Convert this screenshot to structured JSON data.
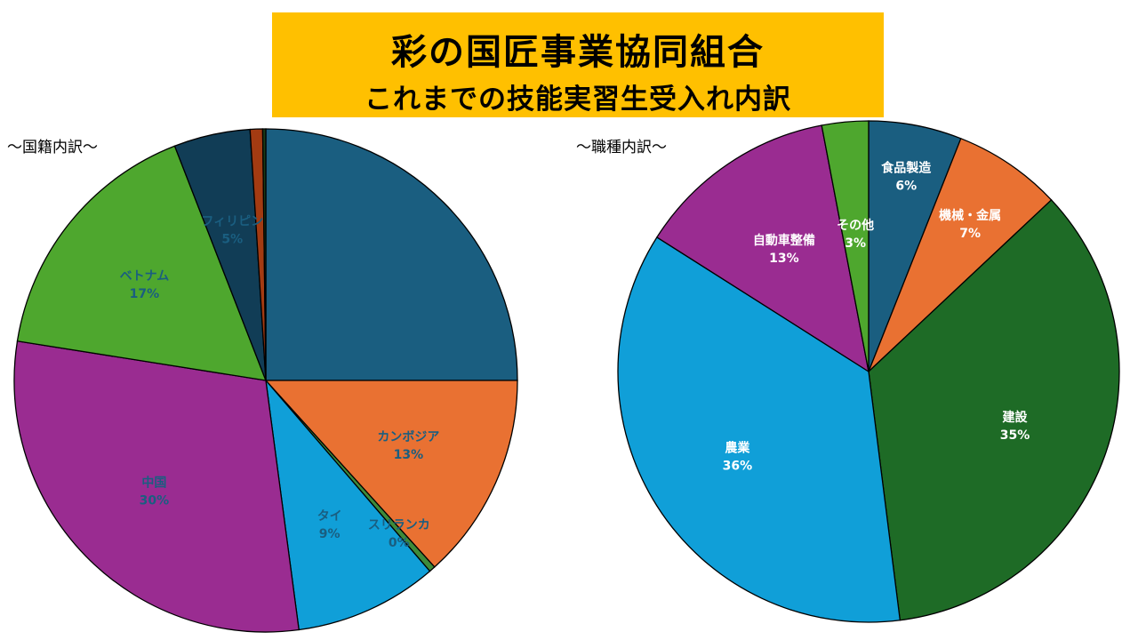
{
  "title": {
    "line1": "彩の国匠事業協同組合",
    "line2": "これまでの技能実習生受入れ内訳"
  },
  "subheads": {
    "left": "～国籍内訳～",
    "right": "～職種内訳～"
  },
  "chart_data": [
    {
      "type": "pie",
      "title": "～国籍内訳～",
      "start_angle_deg": 0,
      "direction": "clockwise",
      "slices": [
        {
          "name": "",
          "value": 25.0,
          "color": "#1a5e80",
          "label_color": "#1a5e80",
          "show_label": false
        },
        {
          "name": "カンボジア",
          "value": 13.3,
          "label": "13%",
          "color": "#e97132",
          "label_color": "#1a5e80",
          "show_label": true
        },
        {
          "name": "スリランカ",
          "value": 0.4,
          "label": "0%",
          "color": "#3e8a3a",
          "label_color": "#1a5e80",
          "show_label": true
        },
        {
          "name": "タイ",
          "value": 9.2,
          "label": "9%",
          "color": "#109fd8",
          "label_color": "#1a5e80",
          "show_label": true
        },
        {
          "name": "中国",
          "value": 29.6,
          "label": "30%",
          "color": "#9a2c91",
          "label_color": "#1a5e80",
          "show_label": true
        },
        {
          "name": "ベトナム",
          "value": 16.6,
          "label": "17%",
          "color": "#4ea72e",
          "label_color": "#1a5e80",
          "show_label": true
        },
        {
          "name": "フィリピン",
          "value": 4.9,
          "label": "5%",
          "color": "#113d56",
          "label_color": "#1a5e80",
          "show_label": true
        },
        {
          "name": "",
          "value": 0.8,
          "color": "#a33b12",
          "label_color": "#1a5e80",
          "show_label": false
        },
        {
          "name": "",
          "value": 0.2,
          "color": "#1b3b17",
          "label_color": "#1a5e80",
          "show_label": false
        }
      ]
    },
    {
      "type": "pie",
      "title": "～職種内訳～",
      "start_angle_deg": 0,
      "direction": "clockwise",
      "slices": [
        {
          "name": "食品製造",
          "value": 6,
          "label": "6%",
          "color": "#1a5e80",
          "label_color": "#ffffff",
          "show_label": true
        },
        {
          "name": "機械・金属",
          "value": 7,
          "label": "7%",
          "color": "#e97132",
          "label_color": "#ffffff",
          "show_label": true
        },
        {
          "name": "建設",
          "value": 35,
          "label": "35%",
          "color": "#1e6b26",
          "label_color": "#ffffff",
          "show_label": true
        },
        {
          "name": "農業",
          "value": 36,
          "label": "36%",
          "color": "#109fd8",
          "label_color": "#ffffff",
          "show_label": true
        },
        {
          "name": "自動車整備",
          "value": 13,
          "label": "13%",
          "color": "#9a2c91",
          "label_color": "#ffffff",
          "show_label": true
        },
        {
          "name": "その他",
          "value": 3,
          "label": "3%",
          "color": "#4ea72e",
          "label_color": "#ffffff",
          "show_label": true
        }
      ]
    }
  ]
}
